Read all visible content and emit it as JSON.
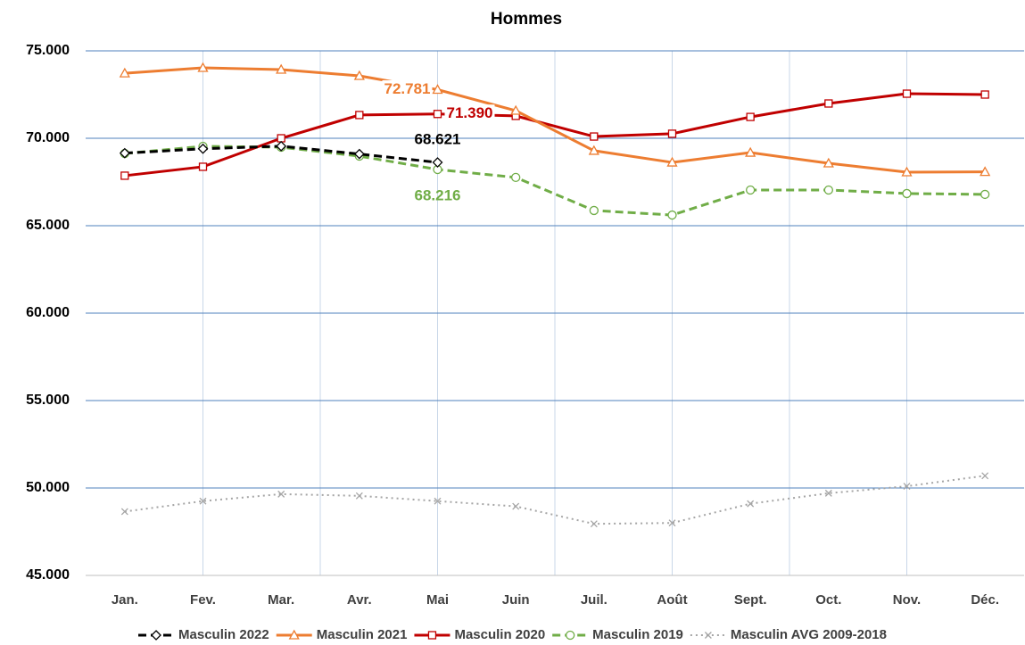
{
  "chart_data": {
    "type": "line",
    "title": "Hommes",
    "categories": [
      "Jan.",
      "Fev.",
      "Mar.",
      "Avr.",
      "Mai",
      "Juin",
      "Juil.",
      "Août",
      "Sept.",
      "Oct.",
      "Nov.",
      "Déc."
    ],
    "ylim": [
      45000,
      75000
    ],
    "yticks": [
      {
        "value": 45000,
        "label": "45.000"
      },
      {
        "value": 50000,
        "label": "50.000"
      },
      {
        "value": 55000,
        "label": "55.000"
      },
      {
        "value": 60000,
        "label": "60.000"
      },
      {
        "value": 65000,
        "label": "65.000"
      },
      {
        "value": 70000,
        "label": "70.000"
      },
      {
        "value": 75000,
        "label": "75.000"
      }
    ],
    "grid": true,
    "legend": "bottom",
    "series": [
      {
        "name": "Masculin 2022",
        "color": "#000000",
        "line_style": "dashed",
        "marker": "diamond",
        "values": [
          69150,
          69400,
          69550,
          69100,
          68621,
          null,
          null,
          null,
          null,
          null,
          null,
          null
        ],
        "value_labels": [
          null,
          null,
          null,
          null,
          "68.621",
          null,
          null,
          null,
          null,
          null,
          null,
          null
        ]
      },
      {
        "name": "Masculin 2021",
        "color": "#ed7d31",
        "line_style": "solid",
        "marker": "triangle",
        "values": [
          73720,
          74030,
          73930,
          73570,
          72781,
          71580,
          69290,
          68620,
          69180,
          68570,
          68060,
          68080
        ],
        "value_labels": [
          null,
          null,
          null,
          null,
          "72.781",
          null,
          null,
          null,
          null,
          null,
          null,
          null
        ]
      },
      {
        "name": "Masculin 2020",
        "color": "#c00000",
        "line_style": "solid",
        "marker": "square",
        "values": [
          67860,
          68370,
          70000,
          71330,
          71390,
          71280,
          70100,
          70260,
          71220,
          71990,
          72550,
          72500
        ],
        "value_labels": [
          null,
          null,
          null,
          null,
          "71.390",
          null,
          null,
          null,
          null,
          null,
          null,
          null
        ]
      },
      {
        "name": "Masculin 2019",
        "color": "#70ad47",
        "line_style": "dashed",
        "marker": "circle",
        "values": [
          69130,
          69540,
          69490,
          68980,
          68216,
          67760,
          65870,
          65610,
          67040,
          67040,
          66840,
          66790
        ],
        "value_labels": [
          null,
          null,
          null,
          null,
          "68.216",
          null,
          null,
          null,
          null,
          null,
          null,
          null
        ]
      },
      {
        "name": "Masculin AVG 2009-2018",
        "color": "#a5a5a5",
        "line_style": "dotted",
        "marker": "x",
        "values": [
          48650,
          49250,
          49650,
          49550,
          49250,
          48950,
          47950,
          48000,
          49100,
          49700,
          50100,
          50700
        ]
      }
    ]
  }
}
